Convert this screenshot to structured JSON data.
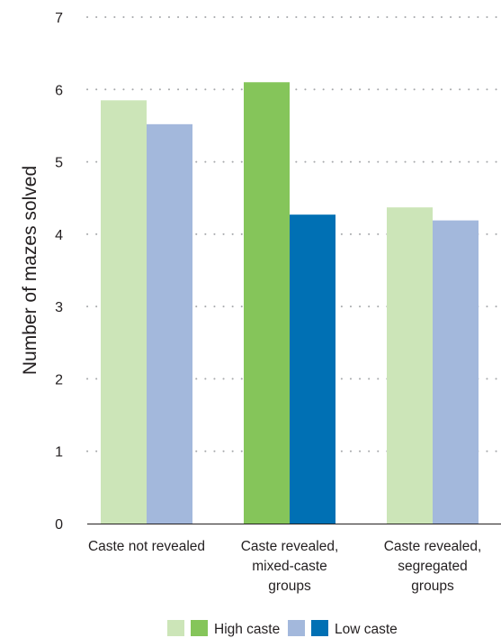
{
  "chart_data": {
    "type": "bar",
    "title": "",
    "xlabel": "",
    "ylabel": "Number of mazes solved",
    "ylim": [
      0,
      7
    ],
    "yticks": [
      "0",
      "1",
      "2",
      "3",
      "4",
      "5",
      "6",
      "7"
    ],
    "grid": true,
    "legend_position": "bottom",
    "categories": [
      [
        "Caste not revealed"
      ],
      [
        "Caste revealed,",
        "mixed-caste",
        "groups"
      ],
      [
        "Caste revealed,",
        "segregated",
        "groups"
      ]
    ],
    "series": [
      {
        "name": "High caste",
        "values": [
          5.85,
          6.1,
          4.37
        ],
        "bar_colors": [
          "#cce5b8",
          "#85c55a",
          "#cce5b8"
        ]
      },
      {
        "name": "Low caste",
        "values": [
          5.52,
          4.27,
          4.19
        ],
        "bar_colors": [
          "#a3b8dc",
          "#0070b4",
          "#a3b8dc"
        ]
      }
    ],
    "legend": [
      {
        "label": "High caste",
        "swatches": [
          "#cce5b8",
          "#85c55a"
        ]
      },
      {
        "label": "Low caste",
        "swatches": [
          "#a3b8dc",
          "#0070b4"
        ]
      }
    ],
    "colors": {
      "grid": "#a7a9ac",
      "axis": "#231f20",
      "text": "#231f20"
    }
  }
}
